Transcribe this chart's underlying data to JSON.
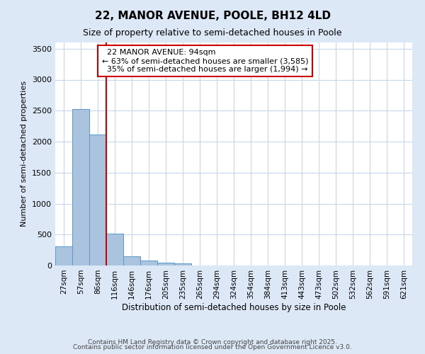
{
  "title": "22, MANOR AVENUE, POOLE, BH12 4LD",
  "subtitle": "Size of property relative to semi-detached houses in Poole",
  "xlabel": "Distribution of semi-detached houses by size in Poole",
  "ylabel": "Number of semi-detached properties",
  "bin_labels": [
    "27sqm",
    "57sqm",
    "86sqm",
    "116sqm",
    "146sqm",
    "176sqm",
    "205sqm",
    "235sqm",
    "265sqm",
    "294sqm",
    "324sqm",
    "354sqm",
    "384sqm",
    "413sqm",
    "443sqm",
    "473sqm",
    "502sqm",
    "532sqm",
    "562sqm",
    "591sqm",
    "621sqm"
  ],
  "bar_values": [
    305,
    2530,
    2110,
    520,
    150,
    75,
    50,
    30,
    5,
    2,
    1,
    1,
    0,
    0,
    0,
    0,
    0,
    0,
    0,
    0,
    0
  ],
  "bar_color": "#aac4e0",
  "bar_edge_color": "#5a9ac8",
  "red_line_x": 2.5,
  "property_label": "22 MANOR AVENUE: 94sqm",
  "smaller_pct": "63%",
  "smaller_count": "3,585",
  "larger_pct": "35%",
  "larger_count": "1,994",
  "red_line_color": "#cc0000",
  "annotation_box_color": "#cc0000",
  "background_color": "#dce8f5",
  "plot_bg_color": "#ffffff",
  "ylim": [
    0,
    3600
  ],
  "yticks": [
    0,
    500,
    1000,
    1500,
    2000,
    2500,
    3000,
    3500
  ],
  "footnote1": "Contains HM Land Registry data © Crown copyright and database right 2025.",
  "footnote2": "Contains public sector information licensed under the Open Government Licence v3.0."
}
